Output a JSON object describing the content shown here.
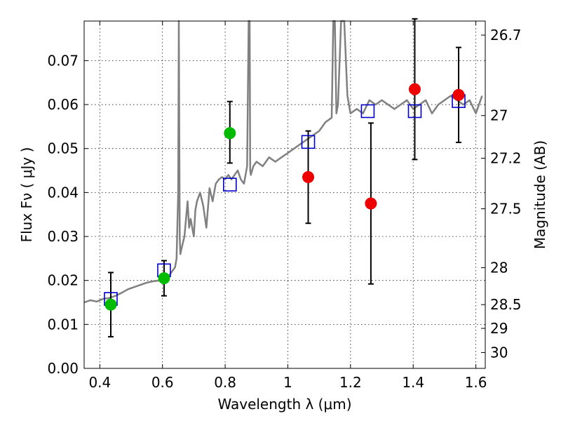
{
  "chart_data": {
    "type": "scatter",
    "xlabel": "Wavelength  λ (μm)",
    "ylabel": "Flux  Fν  ( μJy )",
    "y2label": "Magnitude (AB)",
    "xlim": [
      0.35,
      1.63
    ],
    "ylim": [
      0.0,
      0.079
    ],
    "grid": true,
    "x_ticks": [
      0.4,
      0.6,
      0.8,
      1.0,
      1.2,
      1.4,
      1.6
    ],
    "x_tick_labels": [
      "0.4",
      "0.6",
      "0.8",
      "1",
      "1.2",
      "1.4",
      "1.6"
    ],
    "y_ticks": [
      0.0,
      0.01,
      0.02,
      0.03,
      0.04,
      0.05,
      0.06,
      0.07
    ],
    "y_tick_labels": [
      "0.00",
      "0.01",
      "0.02",
      "0.03",
      "0.04",
      "0.05",
      "0.06",
      "0.07"
    ],
    "y2_ticks": [
      {
        "label": "26.7",
        "flux": 0.0758
      },
      {
        "label": "27",
        "flux": 0.0575
      },
      {
        "label": "27.2",
        "flux": 0.0478
      },
      {
        "label": "27.5",
        "flux": 0.0363
      },
      {
        "label": "28",
        "flux": 0.0229
      },
      {
        "label": "28.5",
        "flux": 0.0145
      },
      {
        "label": "29",
        "flux": 0.0091
      },
      {
        "label": "30",
        "flux": 0.0036
      }
    ],
    "colors": {
      "spectrum": "#808080",
      "model": "#0000cc",
      "detection": "#00bb00",
      "low_sn": "#ee0000",
      "errorbar": "#000000"
    },
    "series": [
      {
        "type": "line",
        "role": "spectrum",
        "x": [
          0.35,
          0.37,
          0.39,
          0.41,
          0.43,
          0.45,
          0.47,
          0.49,
          0.51,
          0.53,
          0.55,
          0.57,
          0.59,
          0.61,
          0.62,
          0.63,
          0.64,
          0.645,
          0.65,
          0.652,
          0.655,
          0.657,
          0.66,
          0.67,
          0.68,
          0.685,
          0.69,
          0.7,
          0.705,
          0.71,
          0.72,
          0.73,
          0.74,
          0.75,
          0.76,
          0.77,
          0.78,
          0.79,
          0.8,
          0.81,
          0.82,
          0.83,
          0.84,
          0.85,
          0.86,
          0.87,
          0.875,
          0.878,
          0.88,
          0.882,
          0.89,
          0.9,
          0.92,
          0.94,
          0.96,
          0.98,
          1.0,
          1.02,
          1.04,
          1.06,
          1.08,
          1.1,
          1.12,
          1.14,
          1.145,
          1.15,
          1.155,
          1.16,
          1.17,
          1.18,
          1.19,
          1.2,
          1.22,
          1.24,
          1.26,
          1.28,
          1.3,
          1.32,
          1.34,
          1.36,
          1.38,
          1.4,
          1.42,
          1.44,
          1.46,
          1.48,
          1.5,
          1.52,
          1.54,
          1.56,
          1.58,
          1.6,
          1.62
        ],
        "y": [
          0.015,
          0.0155,
          0.0152,
          0.0158,
          0.016,
          0.0165,
          0.0172,
          0.018,
          0.0185,
          0.019,
          0.0195,
          0.0198,
          0.02,
          0.0205,
          0.021,
          0.022,
          0.023,
          0.025,
          0.04,
          0.079,
          0.03,
          0.026,
          0.027,
          0.03,
          0.038,
          0.032,
          0.034,
          0.03,
          0.036,
          0.038,
          0.04,
          0.037,
          0.032,
          0.041,
          0.038,
          0.042,
          0.043,
          0.0435,
          0.043,
          0.044,
          0.043,
          0.044,
          0.045,
          0.043,
          0.042,
          0.046,
          0.079,
          0.079,
          0.045,
          0.044,
          0.046,
          0.047,
          0.046,
          0.048,
          0.047,
          0.048,
          0.049,
          0.05,
          0.051,
          0.052,
          0.053,
          0.054,
          0.056,
          0.057,
          0.079,
          0.079,
          0.058,
          0.06,
          0.079,
          0.079,
          0.062,
          0.058,
          0.059,
          0.058,
          0.061,
          0.06,
          0.061,
          0.06,
          0.059,
          0.06,
          0.061,
          0.059,
          0.06,
          0.061,
          0.058,
          0.06,
          0.061,
          0.062,
          0.061,
          0.06,
          0.061,
          0.058,
          0.062
        ]
      },
      {
        "role": "model",
        "name": "",
        "x": [
          0.435,
          0.605,
          0.815,
          1.065,
          1.255,
          1.405,
          1.545
        ],
        "y": [
          0.0158,
          0.0223,
          0.0418,
          0.0515,
          0.0585,
          0.0585,
          0.0608
        ]
      },
      {
        "role": "detection",
        "name": "",
        "x": [
          0.435,
          0.605,
          0.815
        ],
        "y": [
          0.0145,
          0.0205,
          0.0535
        ],
        "err_low": [
          0.0073,
          0.004,
          0.0068
        ],
        "err_high": [
          0.0073,
          0.004,
          0.0072
        ]
      },
      {
        "role": "low_sn",
        "name": "",
        "x": [
          1.065,
          1.265,
          1.405,
          1.545
        ],
        "y": [
          0.0435,
          0.0375,
          0.0635,
          0.0622
        ],
        "err_low": [
          0.0105,
          0.0183,
          0.016,
          0.0108
        ],
        "err_high": [
          0.0105,
          0.0183,
          0.016,
          0.0108
        ]
      }
    ]
  }
}
